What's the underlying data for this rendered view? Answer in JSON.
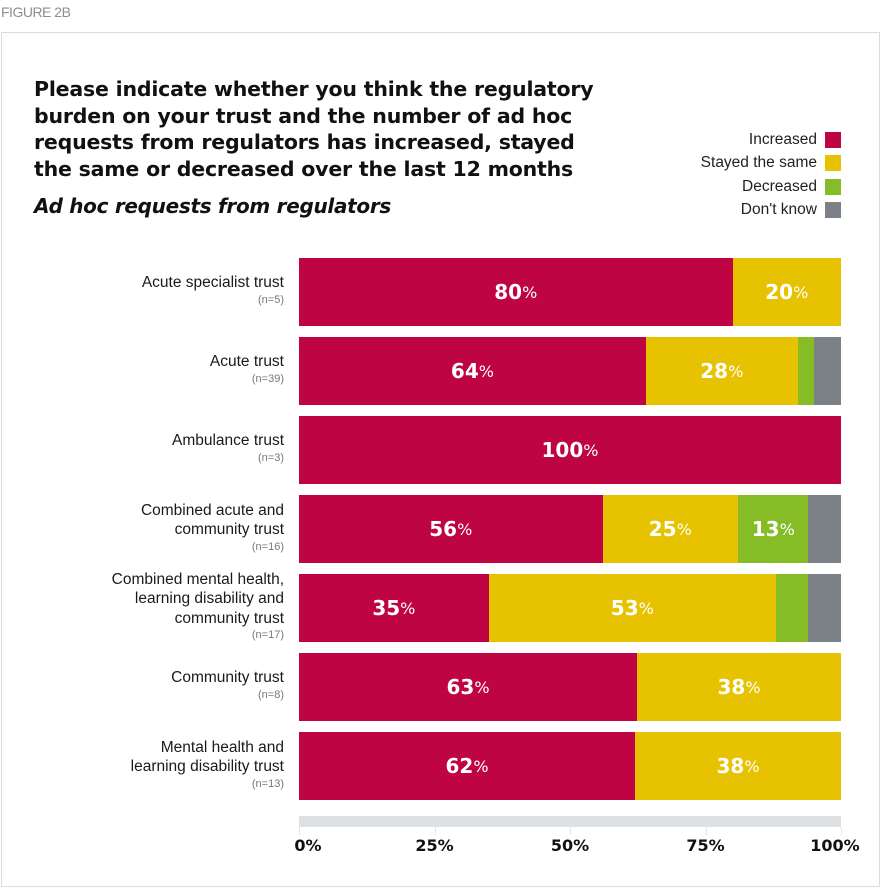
{
  "figure_label": "FIGURE 2B",
  "colors": {
    "increased": "#be0442",
    "stayed_the_same": "#e6c200",
    "decreased": "#86bc25",
    "dont_know": "#7b8187"
  },
  "chart_data": {
    "type": "bar",
    "orientation": "horizontal",
    "stacked": true,
    "title": "Please indicate whether you think the regulatory burden on your trust and the number of ad hoc requests from regulators has increased, stayed the same or decreased over the last 12 months",
    "subtitle": "Ad hoc requests from regulators",
    "xlabel": "",
    "ylabel": "",
    "xlim": [
      0,
      100
    ],
    "x_ticks": [
      "0%",
      "25%",
      "50%",
      "75%",
      "100%"
    ],
    "x_tick_values": [
      0,
      25,
      50,
      75,
      100
    ],
    "legend_position": "top-right",
    "legend": [
      "Increased",
      "Stayed the same",
      "Decreased",
      "Don't know"
    ],
    "categories": [
      {
        "label": "Acute specialist trust",
        "n": "(n=5)"
      },
      {
        "label": "Acute trust",
        "n": "(n=39)"
      },
      {
        "label": "Ambulance trust",
        "n": "(n=3)"
      },
      {
        "label": "Combined acute and community trust",
        "n": "(n=16)"
      },
      {
        "label": "Combined mental health, learning disability and community trust",
        "n": "(n=17)"
      },
      {
        "label": "Community trust",
        "n": "(n=8)"
      },
      {
        "label": "Mental health and learning disability trust",
        "n": "(n=13)"
      }
    ],
    "series": [
      {
        "name": "Increased",
        "key": "increased",
        "values": [
          80,
          64,
          100,
          56,
          35,
          63,
          62
        ],
        "labels": [
          "80",
          "64",
          "100",
          "56",
          "35",
          "63",
          "62"
        ]
      },
      {
        "name": "Stayed the same",
        "key": "stayed_the_same",
        "values": [
          20,
          28,
          0,
          25,
          53,
          38,
          38
        ],
        "labels": [
          "20",
          "28",
          "",
          "25",
          "53",
          "38",
          "38"
        ]
      },
      {
        "name": "Decreased",
        "key": "decreased",
        "values": [
          0,
          3,
          0,
          13,
          6,
          0,
          0
        ],
        "labels": [
          "",
          "",
          "",
          "13",
          "",
          "",
          ""
        ]
      },
      {
        "name": "Don't know",
        "key": "dont_know",
        "values": [
          0,
          5,
          0,
          6,
          6,
          0,
          0
        ],
        "labels": [
          "",
          "",
          "",
          "",
          "",
          "",
          ""
        ]
      }
    ],
    "row_label_lines": [
      [
        "Acute specialist trust"
      ],
      [
        "Acute trust"
      ],
      [
        "Ambulance trust"
      ],
      [
        "Combined acute and",
        "community trust"
      ],
      [
        "Combined mental health,",
        "learning disability and",
        "community trust"
      ],
      [
        "Community trust"
      ],
      [
        "Mental health and",
        "learning disability trust"
      ]
    ],
    "title_lines": [
      "Please indicate whether you think the regulatory",
      "burden on your trust and the number of ad hoc",
      "requests from regulators has increased, stayed",
      "the same or decreased over the last 12 months"
    ]
  }
}
